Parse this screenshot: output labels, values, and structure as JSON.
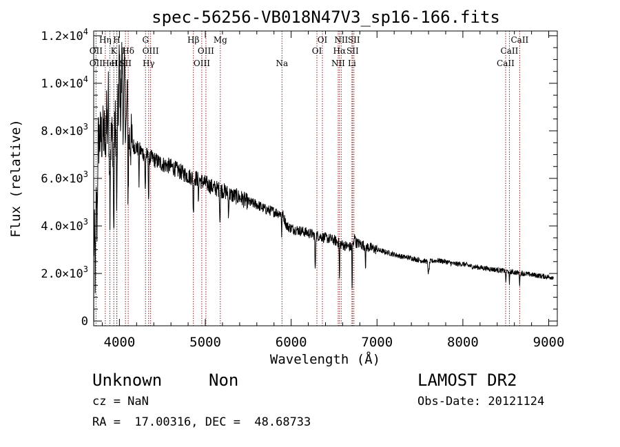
{
  "chart_data": {
    "type": "line",
    "title": "spec-56256-VB018N47V3_sp16-166.fits",
    "xlabel": "Wavelength (Å)",
    "ylabel": "Flux (relative)",
    "xlim": [
      3700,
      9100
    ],
    "ylim": [
      -200,
      12200
    ],
    "x_ticks": [
      4000,
      5000,
      6000,
      7000,
      8000,
      9000
    ],
    "x_tick_labels": [
      "4000",
      "5000",
      "6000",
      "7000",
      "8000",
      "9000"
    ],
    "y_ticks": [
      0,
      2000,
      4000,
      6000,
      8000,
      10000,
      12000
    ],
    "y_tick_labels": [
      {
        "mant": "0",
        "exp": ""
      },
      {
        "mant": "2.0×10",
        "exp": "3"
      },
      {
        "mant": "4.0×10",
        "exp": "3"
      },
      {
        "mant": "6.0×10",
        "exp": "3"
      },
      {
        "mant": "8.0×10",
        "exp": "3"
      },
      {
        "mant": "1.0×10",
        "exp": "4"
      },
      {
        "mant": "1.2×10",
        "exp": "4"
      }
    ],
    "grid": false,
    "legend": "none",
    "line_color": "#000000",
    "marker_color": "#8b1a1a",
    "continuum": {
      "x": [
        3700,
        3750,
        3800,
        3850,
        3900,
        3950,
        4000,
        4050,
        4100,
        4150,
        4200,
        4300,
        4400,
        4500,
        4600,
        4700,
        4800,
        4900,
        5000,
        5100,
        5200,
        5300,
        5400,
        5500,
        5600,
        5700,
        5800,
        5900,
        5950,
        6000,
        6100,
        6200,
        6300,
        6400,
        6500,
        6600,
        6700,
        6750,
        6800,
        6900,
        7000,
        7100,
        7200,
        7300,
        7400,
        7500,
        7600,
        7700,
        7800,
        7900,
        8000,
        8100,
        8200,
        8300,
        8400,
        8500,
        8600,
        8700,
        8800,
        8900,
        9000,
        9050
      ],
      "y": [
        3000,
        7600,
        7800,
        8000,
        7500,
        8200,
        9000,
        8300,
        7800,
        7400,
        7300,
        7000,
        6800,
        6600,
        6500,
        6300,
        6100,
        6000,
        5800,
        5600,
        5500,
        5300,
        5200,
        5000,
        4900,
        4700,
        4600,
        4500,
        4000,
        3900,
        3800,
        3700,
        3600,
        3500,
        3400,
        3200,
        3100,
        3300,
        3250,
        3100,
        3000,
        2900,
        2800,
        2700,
        2650,
        2550,
        2500,
        2550,
        2500,
        2400,
        2400,
        2300,
        2250,
        2200,
        2150,
        2100,
        2050,
        2000,
        1950,
        1900,
        1850,
        1850
      ]
    },
    "absorption_features": [
      {
        "x": 3720,
        "depth": 2800,
        "width": 8
      },
      {
        "x": 3740,
        "depth": 2500,
        "width": 6
      },
      {
        "x": 3835,
        "depth": 1800,
        "width": 4
      },
      {
        "x": 3889,
        "depth": 2500,
        "width": 5
      },
      {
        "x": 3934,
        "depth": 4500,
        "width": 6
      },
      {
        "x": 3969,
        "depth": 4000,
        "width": 6
      },
      {
        "x": 4101,
        "depth": 2500,
        "width": 5
      },
      {
        "x": 4227,
        "depth": 1500,
        "width": 4
      },
      {
        "x": 4300,
        "depth": 1500,
        "width": 5
      },
      {
        "x": 4340,
        "depth": 1800,
        "width": 5
      },
      {
        "x": 4861,
        "depth": 1600,
        "width": 5
      },
      {
        "x": 4920,
        "depth": 1300,
        "width": 3
      },
      {
        "x": 5170,
        "depth": 1300,
        "width": 5
      },
      {
        "x": 5270,
        "depth": 1100,
        "width": 4
      },
      {
        "x": 5890,
        "depth": 900,
        "width": 4
      },
      {
        "x": 6280,
        "depth": 1600,
        "width": 5
      },
      {
        "x": 6563,
        "depth": 1600,
        "width": 4
      },
      {
        "x": 6867,
        "depth": 1000,
        "width": 4
      },
      {
        "x": 6710,
        "depth": 2000,
        "width": 3
      },
      {
        "x": 7600,
        "depth": 500,
        "width": 10
      },
      {
        "x": 8500,
        "depth": 500,
        "width": 4
      },
      {
        "x": 8542,
        "depth": 600,
        "width": 4
      },
      {
        "x": 8662,
        "depth": 500,
        "width": 4
      }
    ],
    "emission_features": [
      {
        "x": 4000,
        "height": 2000,
        "width": 8
      },
      {
        "x": 4030,
        "height": 2500,
        "width": 8
      },
      {
        "x": 4060,
        "height": 2300,
        "width": 8
      },
      {
        "x": 4090,
        "height": 1800,
        "width": 6
      },
      {
        "x": 3850,
        "height": 1200,
        "width": 6
      },
      {
        "x": 3870,
        "height": 1600,
        "width": 6
      },
      {
        "x": 6740,
        "height": 500,
        "width": 6
      }
    ],
    "line_markers": [
      {
        "x": 3727,
        "label": "OII",
        "row": 2
      },
      {
        "x": 3727,
        "label": "OII",
        "row": 3
      },
      {
        "x": 3835,
        "label": "Hη",
        "row": 1
      },
      {
        "x": 3889,
        "label": "HeI",
        "row": 3
      },
      {
        "x": 3934,
        "label": "K",
        "row": 2
      },
      {
        "x": 3969,
        "label": "H",
        "row": 1
      },
      {
        "x": 3970,
        "label": "Hε",
        "row": 3
      },
      {
        "x": 4070,
        "label": "SII",
        "row": 3
      },
      {
        "x": 4102,
        "label": "Hδ",
        "row": 2
      },
      {
        "x": 4304,
        "label": "G",
        "row": 1
      },
      {
        "x": 4340,
        "label": "Hγ",
        "row": 3
      },
      {
        "x": 4363,
        "label": "OIII",
        "row": 2
      },
      {
        "x": 4861,
        "label": "Hβ",
        "row": 1
      },
      {
        "x": 4959,
        "label": "OIII",
        "row": 3
      },
      {
        "x": 5007,
        "label": "OIII",
        "row": 2
      },
      {
        "x": 5175,
        "label": "Mg",
        "row": 1
      },
      {
        "x": 5893,
        "label": "Na",
        "row": 3
      },
      {
        "x": 6300,
        "label": "OI",
        "row": 2
      },
      {
        "x": 6364,
        "label": "OI",
        "row": 1
      },
      {
        "x": 6548,
        "label": "NII",
        "row": 3
      },
      {
        "x": 6563,
        "label": "Hα",
        "row": 2
      },
      {
        "x": 6583,
        "label": "NII",
        "row": 1
      },
      {
        "x": 6708,
        "label": "Li",
        "row": 3
      },
      {
        "x": 6716,
        "label": "SII",
        "row": 2
      },
      {
        "x": 6731,
        "label": "SII",
        "row": 1
      },
      {
        "x": 8498,
        "label": "CaII",
        "row": 3
      },
      {
        "x": 8542,
        "label": "CaII",
        "row": 2
      },
      {
        "x": 8662,
        "label": "CaII",
        "row": 1
      }
    ]
  },
  "info": {
    "object_class": "Unknown",
    "object_subclass": "Non",
    "survey": "LAMOST DR2",
    "redshift": "cz = NaN",
    "obs_date": "Obs-Date: 20121124",
    "coordinates": "RA =  17.00316, DEC =  48.68733"
  }
}
